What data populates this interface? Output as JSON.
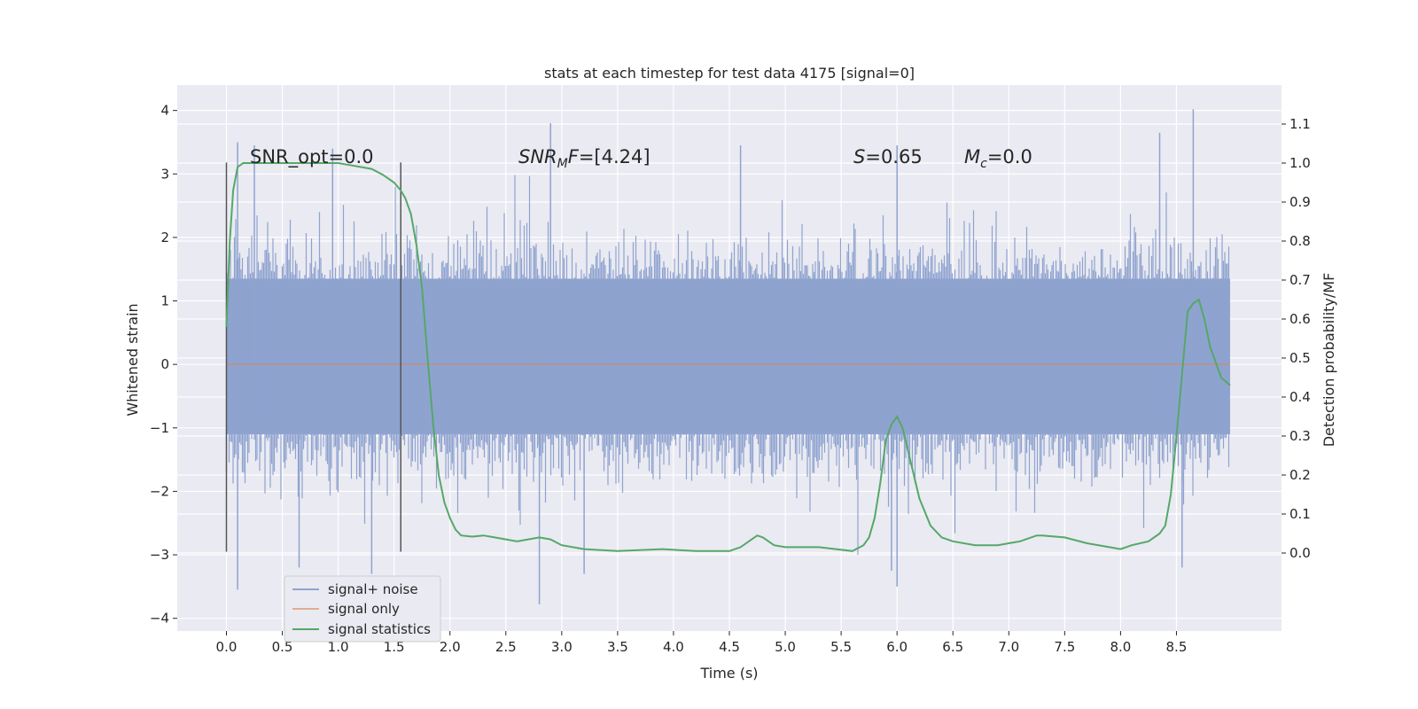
{
  "chart_data": {
    "type": "line",
    "title": "stats at each timestep for test data 4175 [signal=0]",
    "xlabel": "Time (s)",
    "ylabel_left": "Whitened strain",
    "ylabel_right": "Detection probability/MF",
    "xlim": [
      -0.44,
      9.44
    ],
    "ylim_left": [
      -4.2,
      4.4
    ],
    "ylim_right": [
      -0.2,
      1.2
    ],
    "x_ticks": [
      0.0,
      0.5,
      1.0,
      1.5,
      2.0,
      2.5,
      3.0,
      3.5,
      4.0,
      4.5,
      5.0,
      5.5,
      6.0,
      6.5,
      7.0,
      7.5,
      8.0,
      8.5
    ],
    "x_tick_labels": [
      "0.0",
      "0.5",
      "1.0",
      "1.5",
      "2.0",
      "2.5",
      "3.0",
      "3.5",
      "4.0",
      "4.5",
      "5.0",
      "5.5",
      "6.0",
      "6.5",
      "7.0",
      "7.5",
      "8.0",
      "8.5"
    ],
    "y_left_ticks": [
      4,
      3,
      2,
      1,
      0,
      -1,
      -2,
      -3,
      -4
    ],
    "y_left_tick_labels": [
      "4",
      "3",
      "2",
      "1",
      "0",
      "−1",
      "−2",
      "−3",
      "−4"
    ],
    "y_right_ticks": [
      1.1,
      1.0,
      0.9,
      0.8,
      0.7,
      0.6,
      0.5,
      0.4,
      0.3,
      0.2,
      0.1,
      0.0
    ],
    "y_right_tick_labels": [
      "1.1",
      "1.0",
      "0.9",
      "0.8",
      "0.7",
      "0.6",
      "0.5",
      "0.4",
      "0.3",
      "0.2",
      "0.1",
      "0.0"
    ],
    "annotations": {
      "snr_opt": "SNR_opt=0.0",
      "snr_mf_prefix": "SNR",
      "snr_mf_sub": "M",
      "snr_mf_mid": "F",
      "snr_mf_value": "=[4.24]",
      "s_label": "S",
      "s_value": "=0.65",
      "mc_label": "M",
      "mc_sub": "c",
      "mc_value": "=0.0"
    },
    "vertical_markers": [
      0.0,
      1.56
    ],
    "vertical_marker_range": [
      -2.95,
      3.18
    ],
    "noise_envelope": {
      "x_range": [
        0.0,
        8.98
      ],
      "inner_band": [
        -1.1,
        1.35
      ],
      "typical_peak_range": [
        -2.2,
        2.0
      ],
      "max_value": 4.02,
      "min_value": -3.78
    },
    "series": [
      {
        "name": "signal+ noise",
        "color": "#8fa3cf",
        "description": "whitened strain time series (dense noise)"
      },
      {
        "name": "signal only",
        "color": "#dd8452",
        "x": [
          0.0,
          8.98
        ],
        "y": [
          0.0,
          0.0
        ]
      },
      {
        "name": "signal statistics",
        "color": "#55a868",
        "x": [
          0.0,
          0.03,
          0.06,
          0.1,
          0.15,
          0.2,
          0.3,
          0.5,
          0.8,
          1.0,
          1.1,
          1.2,
          1.3,
          1.4,
          1.5,
          1.56,
          1.6,
          1.65,
          1.7,
          1.75,
          1.8,
          1.85,
          1.9,
          1.95,
          2.0,
          2.05,
          2.1,
          2.2,
          2.3,
          2.4,
          2.6,
          2.8,
          2.9,
          3.0,
          3.2,
          3.5,
          3.9,
          4.2,
          4.5,
          4.6,
          4.7,
          4.75,
          4.8,
          4.9,
          5.0,
          5.3,
          5.6,
          5.7,
          5.75,
          5.8,
          5.85,
          5.9,
          5.95,
          6.0,
          6.05,
          6.1,
          6.15,
          6.2,
          6.3,
          6.4,
          6.5,
          6.7,
          6.9,
          7.0,
          7.1,
          7.2,
          7.25,
          7.3,
          7.5,
          7.7,
          7.9,
          8.0,
          8.1,
          8.25,
          8.35,
          8.4,
          8.45,
          8.5,
          8.55,
          8.6,
          8.65,
          8.7,
          8.75,
          8.8,
          8.85,
          8.9,
          8.98
        ],
        "y": [
          0.58,
          0.8,
          0.93,
          0.99,
          1.0,
          1.0,
          1.0,
          1.0,
          1.0,
          1.0,
          0.995,
          0.99,
          0.985,
          0.97,
          0.95,
          0.93,
          0.91,
          0.87,
          0.79,
          0.68,
          0.5,
          0.33,
          0.2,
          0.13,
          0.09,
          0.06,
          0.045,
          0.042,
          0.045,
          0.04,
          0.03,
          0.04,
          0.035,
          0.02,
          0.01,
          0.005,
          0.01,
          0.005,
          0.005,
          0.015,
          0.035,
          0.045,
          0.04,
          0.02,
          0.015,
          0.015,
          0.005,
          0.02,
          0.04,
          0.09,
          0.18,
          0.29,
          0.33,
          0.35,
          0.32,
          0.26,
          0.2,
          0.14,
          0.07,
          0.04,
          0.03,
          0.02,
          0.02,
          0.025,
          0.03,
          0.04,
          0.045,
          0.045,
          0.04,
          0.025,
          0.015,
          0.01,
          0.02,
          0.03,
          0.05,
          0.07,
          0.15,
          0.3,
          0.46,
          0.62,
          0.64,
          0.65,
          0.6,
          0.53,
          0.49,
          0.45,
          0.43
        ]
      }
    ],
    "legend": {
      "position": "lower-left",
      "entries": [
        "signal+ noise",
        "signal only",
        "signal statistics"
      ]
    },
    "grid": true,
    "colors": {
      "background": "#eaeaf2",
      "grid": "#ffffff",
      "noise": "#8fa3cf",
      "signal": "#dd8452",
      "stats": "#55a868",
      "marker": "#555555"
    }
  }
}
